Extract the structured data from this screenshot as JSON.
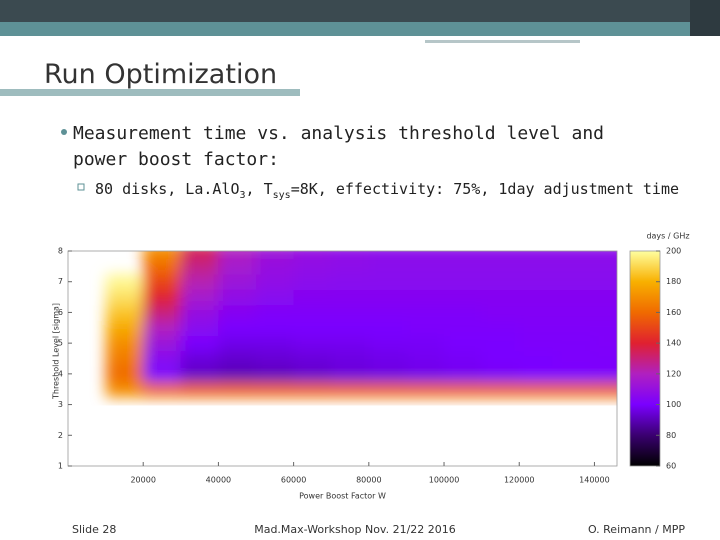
{
  "header": {
    "title": "Run Optimization"
  },
  "bullets": [
    {
      "text": "Measurement time vs. analysis threshold level and",
      "text2": "power boost factor:"
    }
  ],
  "sub_bullet": [
    "80 disks, La.AlO",
    "3",
    ", T",
    "sys",
    "=8K, effectivity: 75%, 1day adjustment time"
  ],
  "chart_data": {
    "type": "heatmap",
    "x_label": "Power Boost Factor W",
    "y_label": "Threshold Level [sigma]",
    "colorbar_label": "days / GHz",
    "x": [
      5000,
      15000,
      25000,
      35000,
      45000,
      55000,
      65000,
      75000,
      85000,
      95000,
      105000,
      115000,
      125000,
      135000,
      145000
    ],
    "y": [
      3.5,
      4,
      4.5,
      5,
      5.5,
      6,
      6.5,
      7,
      7.5,
      8
    ],
    "z": [
      [
        null,
        170,
        160,
        158,
        158,
        158,
        158,
        158,
        158,
        158,
        158,
        158,
        158,
        158,
        158
      ],
      [
        null,
        160,
        100,
        92,
        90,
        91,
        93,
        95,
        96,
        97,
        98,
        99,
        100,
        100,
        101
      ],
      [
        null,
        165,
        105,
        95,
        93,
        94,
        95,
        96,
        97,
        98,
        99,
        100,
        100,
        101,
        101
      ],
      [
        null,
        170,
        112,
        100,
        97,
        97,
        98,
        98,
        99,
        99,
        100,
        100,
        101,
        101,
        102
      ],
      [
        null,
        178,
        120,
        105,
        100,
        100,
        100,
        100,
        100,
        101,
        101,
        101,
        102,
        102,
        102
      ],
      [
        null,
        185,
        130,
        110,
        104,
        102,
        102,
        102,
        102,
        102,
        102,
        103,
        103,
        103,
        103
      ],
      [
        null,
        192,
        140,
        116,
        108,
        105,
        104,
        104,
        104,
        104,
        104,
        104,
        104,
        104,
        104
      ],
      [
        null,
        198,
        150,
        122,
        112,
        108,
        106,
        105,
        105,
        105,
        105,
        105,
        105,
        105,
        105
      ],
      [
        null,
        null,
        160,
        128,
        116,
        110,
        108,
        107,
        106,
        106,
        106,
        106,
        106,
        106,
        106
      ],
      [
        null,
        null,
        170,
        135,
        120,
        113,
        110,
        108,
        107,
        107,
        107,
        107,
        107,
        107,
        107
      ]
    ],
    "xlim": [
      0,
      146000
    ],
    "ylim": [
      1,
      8
    ],
    "xticks": [
      20000,
      40000,
      60000,
      80000,
      100000,
      120000,
      140000
    ],
    "yticks": [
      1,
      2,
      3,
      4,
      5,
      6,
      7,
      8
    ],
    "zlim": [
      60,
      200
    ],
    "zticks": [
      60,
      80,
      100,
      120,
      140,
      160,
      180,
      200
    ],
    "colormap": [
      "#000000",
      "#3a0070",
      "#7a00ff",
      "#b020c0",
      "#e02030",
      "#f06a00",
      "#f8b000",
      "#ffffa0"
    ]
  },
  "footer": {
    "left": "Slide 28",
    "center": "Mad.Max-Workshop Nov. 21/22 2016",
    "right": "O. Reimann / MPP"
  }
}
